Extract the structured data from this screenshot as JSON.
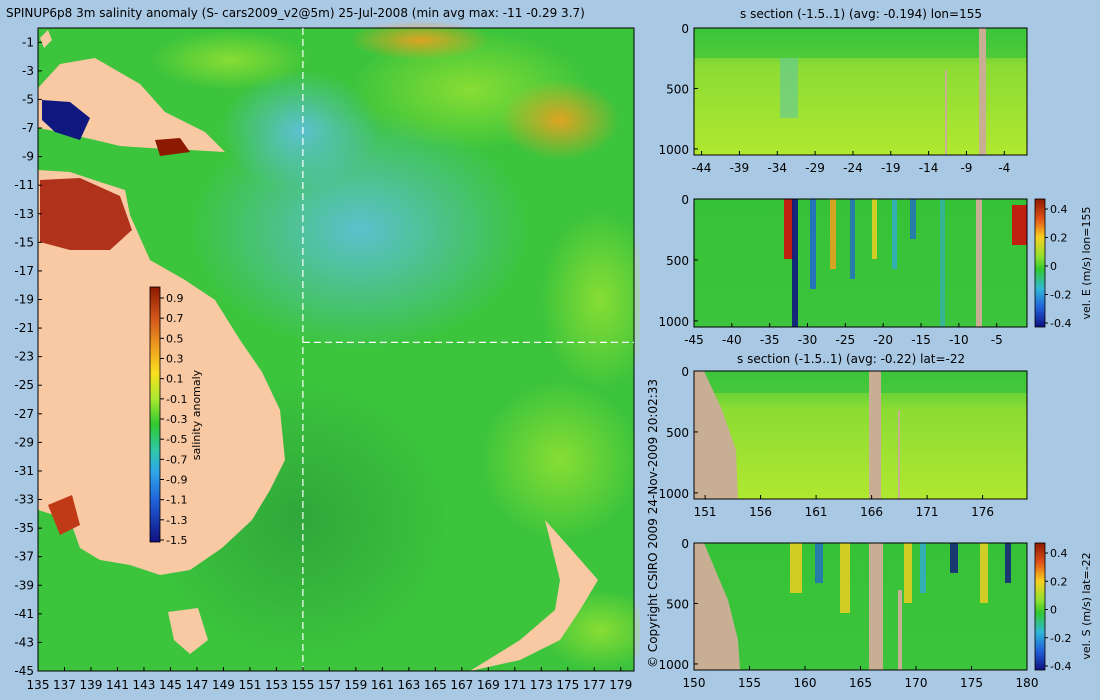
{
  "main_title": "SPINUP6p8 3m salinity anomaly (S- cars2009_v2@5m) 25-Jul-2008 (min avg max: -11 -0.29 3.7)",
  "copyright": "© Copyright CSIRO 2009   24-Nov-2009 20:02:33",
  "colors": {
    "background": "#a9c8e4",
    "land": "#f9c9a4",
    "section_land": "#c8ae92",
    "ocean_base": "#3cc43c",
    "section_base": "#a8e830"
  },
  "chart_data": [
    {
      "id": "map",
      "type": "heatmap",
      "title": "SPINUP6p8 3m salinity anomaly (S- cars2009_v2@5m) 25-Jul-2008 (min avg max: -11 -0.29 3.7)",
      "x_ticks": [
        135,
        137,
        139,
        141,
        143,
        145,
        147,
        149,
        151,
        153,
        155,
        157,
        159,
        161,
        163,
        165,
        167,
        169,
        171,
        173,
        175,
        177,
        179
      ],
      "y_ticks": [
        -1,
        -3,
        -5,
        -7,
        -9,
        -11,
        -13,
        -15,
        -17,
        -19,
        -21,
        -23,
        -25,
        -27,
        -29,
        -31,
        -33,
        -35,
        -37,
        -39,
        -41,
        -43,
        -45
      ],
      "xlim": [
        135,
        180
      ],
      "ylim": [
        -45,
        0
      ],
      "section_lon": 155,
      "section_lat": -22,
      "colorbar": {
        "label": "salinity anomaly",
        "ticks": [
          "0.9",
          "0.7",
          "0.5",
          "0.3",
          "0.1",
          "-0.1",
          "-0.3",
          "-0.5",
          "-0.7",
          "-0.9",
          "-1.1",
          "-1.3",
          "-1.5"
        ]
      }
    },
    {
      "id": "s-section-lon",
      "type": "heatmap",
      "title": "s section (-1.5..1) (avg: -0.194) lon=155",
      "x_ticks": [
        -44,
        -39,
        -34,
        -29,
        -24,
        -19,
        -14,
        -9,
        -4
      ],
      "xlim": [
        -45,
        -1
      ],
      "y_ticks": [
        "0",
        "500",
        "1000"
      ],
      "ylim": [
        1050,
        0
      ]
    },
    {
      "id": "ve-section-lon",
      "type": "heatmap",
      "title": "",
      "x_ticks": [
        -45,
        -40,
        -35,
        -30,
        -25,
        -20,
        -15,
        -10,
        -5
      ],
      "xlim": [
        -45,
        -1
      ],
      "y_ticks": [
        "0",
        "500",
        "1000"
      ],
      "ylim": [
        1050,
        0
      ],
      "colorbar": {
        "label": "vel. E (m/s) lon=155",
        "ticks": [
          "0.4",
          "0.2",
          "0",
          "-0.2",
          "-0.4"
        ]
      }
    },
    {
      "id": "s-section-lat",
      "type": "heatmap",
      "title": "s section (-1.5..1) (avg: -0.22) lat=-22",
      "x_ticks": [
        151,
        156,
        161,
        166,
        171,
        176
      ],
      "xlim": [
        150,
        180
      ],
      "y_ticks": [
        "0",
        "500",
        "1000"
      ],
      "ylim": [
        1050,
        0
      ]
    },
    {
      "id": "vs-section-lat",
      "type": "heatmap",
      "title": "",
      "x_ticks": [
        150,
        155,
        160,
        165,
        170,
        175,
        180
      ],
      "xlim": [
        150,
        180
      ],
      "y_ticks": [
        "0",
        "500",
        "1000"
      ],
      "ylim": [
        1050,
        0
      ],
      "colorbar": {
        "label": "vel. S (m/s) lat=-22",
        "ticks": [
          "0.4",
          "0.2",
          "0",
          "-0.2",
          "-0.4"
        ]
      }
    }
  ]
}
